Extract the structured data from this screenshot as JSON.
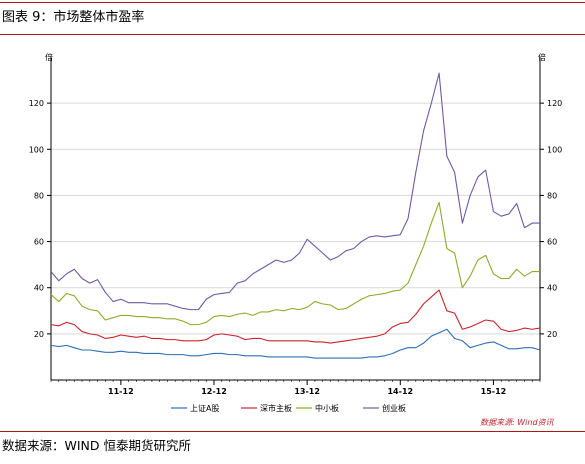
{
  "figure_title": "图表 9：市场整体市盈率",
  "source_note": "数据来源：WIND 恒泰期货研究所",
  "watermark": "数据来源: Wind资讯",
  "colors": {
    "rule": "#b01818",
    "上证A股": "#2d6fb5",
    "深市主板": "#c8252f",
    "中小板": "#8aae2b",
    "创业板": "#6f5aa6"
  },
  "chart_data": {
    "type": "line",
    "title": "",
    "xlabel": "",
    "ylabel": "",
    "ylim": [
      0,
      140
    ],
    "y_ticks": [
      20,
      40,
      60,
      80,
      100,
      120
    ],
    "left_axis_unit": "倍",
    "right_axis_unit": "倍",
    "x_tick_labels": [
      "11-12",
      "12-12",
      "13-12",
      "14-12",
      "15-12"
    ],
    "x_tick_positions": [
      9,
      21,
      33,
      45,
      57
    ],
    "x": [
      0,
      1,
      2,
      3,
      4,
      5,
      6,
      7,
      8,
      9,
      10,
      11,
      12,
      13,
      14,
      15,
      16,
      17,
      18,
      19,
      20,
      21,
      22,
      23,
      24,
      25,
      26,
      27,
      28,
      29,
      30,
      31,
      32,
      33,
      34,
      35,
      36,
      37,
      38,
      39,
      40,
      41,
      42,
      43,
      44,
      45,
      46,
      47,
      48,
      49,
      50,
      51,
      52,
      53,
      54,
      55,
      56,
      57,
      58,
      59,
      60,
      61,
      62,
      63
    ],
    "xlim": [
      0,
      63
    ],
    "grid": true,
    "legend_position": "bottom",
    "series": [
      {
        "name": "上证A股",
        "values": [
          15,
          14.5,
          15,
          14,
          13,
          13,
          12.5,
          12,
          12,
          12.5,
          12,
          12,
          11.5,
          11.5,
          11.5,
          11,
          11,
          11,
          10.5,
          10.5,
          11,
          11.5,
          11.5,
          11,
          11,
          10.5,
          10.5,
          10.5,
          10,
          10,
          10,
          10,
          10,
          10,
          9.5,
          9.5,
          9.5,
          9.5,
          9.5,
          9.5,
          9.5,
          10,
          10,
          10.5,
          11.5,
          13,
          14,
          14,
          16,
          19,
          20.5,
          22,
          18,
          17,
          14,
          15,
          16,
          16.5,
          15,
          13.5,
          13.5,
          14,
          14,
          13
        ]
      },
      {
        "name": "深市主板",
        "values": [
          24,
          23.5,
          25,
          24,
          21,
          20,
          19.5,
          18,
          18.5,
          19.5,
          19,
          18.5,
          19,
          18,
          18,
          17.5,
          17.5,
          17,
          17,
          17,
          17.5,
          19.5,
          20,
          19.5,
          19,
          17.5,
          18,
          18,
          17,
          17,
          17,
          17,
          17,
          17,
          16.5,
          16.5,
          16,
          16.5,
          17,
          17.5,
          18,
          18.5,
          19,
          20,
          23,
          24.5,
          25,
          28.5,
          33,
          36,
          39,
          30,
          29,
          22,
          23,
          24.5,
          26,
          25.5,
          22,
          21,
          21.5,
          22.5,
          22,
          22.5
        ]
      },
      {
        "name": "中小板",
        "values": [
          37,
          34,
          37.5,
          36.5,
          32,
          30.5,
          30,
          26,
          27,
          28,
          28,
          27.5,
          27.5,
          27,
          27,
          26.5,
          26.5,
          25.5,
          24,
          24,
          25,
          27.5,
          28,
          27.5,
          28.5,
          29,
          28,
          29.5,
          29.5,
          30.5,
          30,
          31,
          30.5,
          31.5,
          34,
          33,
          32.5,
          30.5,
          31,
          33,
          35,
          36.5,
          37,
          37.5,
          38.5,
          39,
          42,
          50,
          58,
          68,
          77,
          57,
          55,
          40,
          45,
          52,
          54,
          46,
          44,
          44,
          48,
          45,
          47,
          47
        ]
      },
      {
        "name": "创业板",
        "values": [
          47,
          43,
          46,
          48,
          44,
          42,
          43.5,
          38,
          34,
          35,
          33.5,
          33.5,
          33.5,
          33,
          33,
          33,
          32,
          31,
          30.5,
          30.5,
          35,
          37,
          37.5,
          38,
          42,
          43,
          46,
          48,
          50,
          52,
          51,
          52,
          55,
          61,
          58,
          55,
          52,
          53.5,
          56,
          57,
          60,
          62,
          62.5,
          62,
          62.5,
          63,
          70,
          90,
          108,
          120,
          133,
          97,
          90,
          68,
          80,
          88,
          91,
          73,
          71,
          72,
          76.5,
          66,
          68,
          68
        ]
      }
    ]
  }
}
